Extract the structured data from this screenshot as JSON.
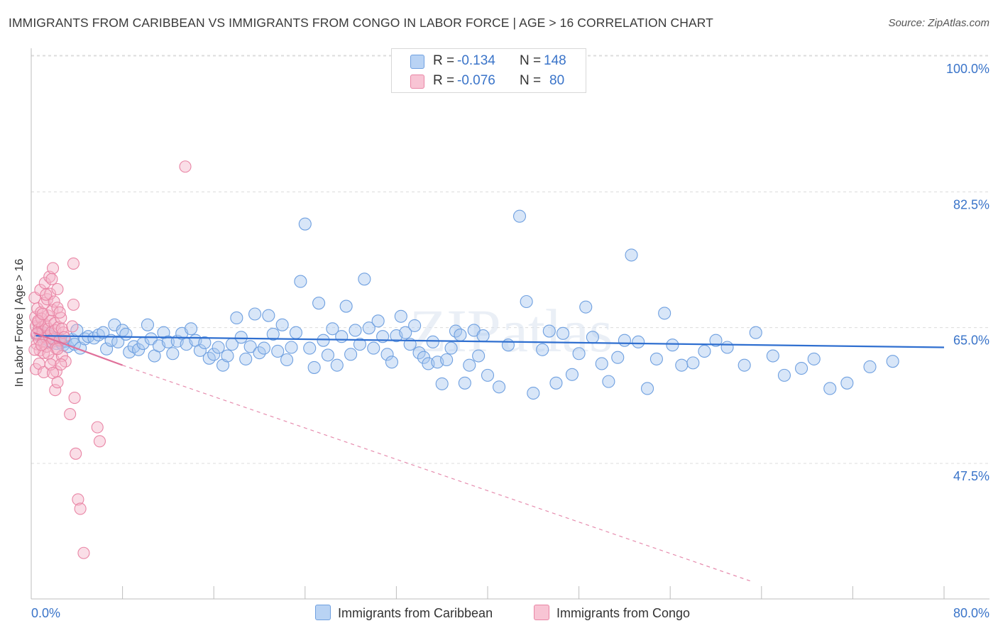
{
  "title": "IMMIGRANTS FROM CARIBBEAN VS IMMIGRANTS FROM CONGO IN LABOR FORCE | AGE > 16 CORRELATION CHART",
  "source": "Source: ZipAtlas.com",
  "watermark": "ZIPatlas",
  "colors": {
    "blue": "#6fa0e0",
    "blue_fill": "#a9c8f0",
    "blue_line": "#2f6fd0",
    "pink": "#e985a5",
    "pink_fill": "#f5b6c9",
    "pink_line": "#e0709a",
    "tick_text": "#3a74c9"
  },
  "legend": {
    "rows": [
      {
        "r_label": "R =",
        "r_value": "-0.134",
        "n_label": "N =",
        "n_value": "148"
      },
      {
        "r_label": "R =",
        "r_value": "-0.076",
        "n_label": "N =",
        "n_value": "80"
      }
    ]
  },
  "bottom_legend": {
    "caribbean": "Immigrants from Caribbean",
    "congo": "Immigrants from Congo"
  },
  "chart_data": {
    "type": "scatter",
    "title": "IMMIGRANTS FROM CARIBBEAN VS IMMIGRANTS FROM CONGO IN LABOR FORCE | AGE > 16 CORRELATION CHART",
    "xlabel": "",
    "ylabel": "In Labor Force | Age > 16",
    "xlim": [
      0,
      80
    ],
    "ylim": [
      34,
      103
    ],
    "x_tick_labels": [
      "0.0%",
      "80.0%"
    ],
    "y_ticks": [
      100.0,
      82.5,
      65.0,
      47.5
    ],
    "y_tick_labels": [
      "100.0%",
      "82.5%",
      "65.0%",
      "47.5%"
    ],
    "series": [
      {
        "name": "Immigrants from Caribbean",
        "r": -0.134,
        "n": 148,
        "trend": {
          "x": [
            0.4,
            80
          ],
          "y": [
            65.6,
            64.1
          ]
        },
        "points": [
          [
            0.5,
            65.8
          ],
          [
            0.8,
            65.5
          ],
          [
            1.0,
            66.0
          ],
          [
            1.2,
            65.2
          ],
          [
            1.4,
            65.9
          ],
          [
            1.6,
            64.9
          ],
          [
            1.8,
            65.4
          ],
          [
            2.0,
            65.0
          ],
          [
            2.2,
            64.6
          ],
          [
            2.4,
            65.3
          ],
          [
            2.6,
            64.7
          ],
          [
            2.8,
            64.4
          ],
          [
            3.0,
            64.9
          ],
          [
            3.2,
            64.2
          ],
          [
            3.6,
            65.1
          ],
          [
            3.8,
            64.5
          ],
          [
            4.0,
            66.3
          ],
          [
            4.3,
            64.0
          ],
          [
            4.7,
            65.2
          ],
          [
            5.0,
            65.5
          ],
          [
            5.5,
            65.3
          ],
          [
            5.9,
            65.7
          ],
          [
            6.3,
            66.0
          ],
          [
            6.6,
            63.9
          ],
          [
            7.0,
            65.0
          ],
          [
            7.3,
            67.0
          ],
          [
            7.6,
            64.8
          ],
          [
            8.0,
            66.3
          ],
          [
            8.3,
            65.8
          ],
          [
            8.6,
            63.5
          ],
          [
            9.0,
            64.2
          ],
          [
            9.4,
            63.8
          ],
          [
            9.8,
            64.6
          ],
          [
            10.2,
            67.0
          ],
          [
            10.5,
            65.2
          ],
          [
            10.8,
            63.0
          ],
          [
            11.2,
            64.3
          ],
          [
            11.6,
            66.0
          ],
          [
            12.0,
            64.8
          ],
          [
            12.4,
            63.3
          ],
          [
            12.8,
            64.9
          ],
          [
            13.2,
            65.9
          ],
          [
            13.6,
            64.5
          ],
          [
            14.0,
            66.5
          ],
          [
            14.4,
            65.0
          ],
          [
            14.8,
            63.7
          ],
          [
            15.2,
            64.7
          ],
          [
            15.6,
            62.7
          ],
          [
            16.0,
            63.2
          ],
          [
            16.4,
            64.1
          ],
          [
            16.8,
            61.8
          ],
          [
            17.2,
            63.0
          ],
          [
            17.6,
            64.5
          ],
          [
            18.0,
            67.9
          ],
          [
            18.4,
            65.4
          ],
          [
            18.8,
            62.6
          ],
          [
            19.2,
            64.2
          ],
          [
            19.6,
            68.4
          ],
          [
            20.0,
            63.4
          ],
          [
            20.4,
            64.0
          ],
          [
            20.8,
            68.2
          ],
          [
            21.2,
            65.8
          ],
          [
            21.6,
            63.6
          ],
          [
            22.0,
            67.0
          ],
          [
            22.4,
            62.5
          ],
          [
            22.8,
            64.1
          ],
          [
            23.2,
            66.0
          ],
          [
            23.6,
            72.6
          ],
          [
            24.0,
            80.0
          ],
          [
            24.4,
            64.0
          ],
          [
            24.8,
            61.5
          ],
          [
            25.2,
            69.8
          ],
          [
            25.6,
            65.0
          ],
          [
            26.0,
            63.1
          ],
          [
            26.4,
            66.5
          ],
          [
            26.8,
            61.8
          ],
          [
            27.2,
            65.5
          ],
          [
            27.6,
            69.4
          ],
          [
            28.0,
            63.2
          ],
          [
            28.4,
            66.3
          ],
          [
            28.8,
            64.5
          ],
          [
            29.2,
            72.9
          ],
          [
            29.6,
            66.6
          ],
          [
            30.0,
            64.0
          ],
          [
            30.4,
            67.5
          ],
          [
            30.8,
            65.5
          ],
          [
            31.2,
            63.2
          ],
          [
            31.6,
            62.2
          ],
          [
            32.0,
            65.6
          ],
          [
            32.4,
            68.1
          ],
          [
            32.8,
            66.0
          ],
          [
            33.2,
            64.5
          ],
          [
            33.6,
            66.9
          ],
          [
            34.0,
            63.4
          ],
          [
            34.4,
            62.8
          ],
          [
            34.8,
            62.0
          ],
          [
            35.2,
            64.8
          ],
          [
            35.6,
            62.2
          ],
          [
            36.0,
            59.4
          ],
          [
            36.4,
            62.5
          ],
          [
            36.8,
            64.0
          ],
          [
            37.2,
            66.2
          ],
          [
            37.6,
            65.7
          ],
          [
            38.0,
            59.5
          ],
          [
            38.4,
            61.8
          ],
          [
            38.8,
            66.3
          ],
          [
            39.2,
            63.0
          ],
          [
            39.6,
            65.6
          ],
          [
            40.0,
            60.5
          ],
          [
            41.0,
            59.0
          ],
          [
            41.8,
            64.4
          ],
          [
            42.8,
            81.0
          ],
          [
            43.4,
            70.0
          ],
          [
            44.0,
            58.2
          ],
          [
            44.8,
            63.8
          ],
          [
            45.4,
            66.2
          ],
          [
            46.0,
            59.5
          ],
          [
            46.6,
            65.9
          ],
          [
            47.4,
            60.6
          ],
          [
            48.0,
            63.3
          ],
          [
            48.6,
            69.3
          ],
          [
            49.2,
            65.4
          ],
          [
            50.0,
            62.0
          ],
          [
            50.6,
            59.7
          ],
          [
            51.4,
            62.8
          ],
          [
            52.0,
            65.0
          ],
          [
            52.6,
            76.0
          ],
          [
            53.2,
            64.8
          ],
          [
            54.0,
            58.8
          ],
          [
            54.8,
            62.6
          ],
          [
            55.5,
            68.5
          ],
          [
            56.2,
            64.4
          ],
          [
            57.0,
            61.8
          ],
          [
            58.0,
            62.1
          ],
          [
            59.0,
            63.6
          ],
          [
            60.0,
            65.0
          ],
          [
            61.0,
            64.1
          ],
          [
            62.5,
            61.8
          ],
          [
            63.5,
            66.0
          ],
          [
            65.0,
            63.0
          ],
          [
            66.0,
            60.5
          ],
          [
            67.5,
            61.4
          ],
          [
            68.6,
            62.6
          ],
          [
            70.0,
            58.8
          ],
          [
            71.5,
            59.5
          ],
          [
            73.5,
            61.6
          ],
          [
            75.5,
            62.3
          ]
        ]
      },
      {
        "name": "Immigrants from Congo",
        "r": -0.076,
        "n": 80,
        "trend": {
          "x": [
            0.2,
            8.0
          ],
          "y": [
            66.0,
            61.8
          ]
        },
        "trend_extended": {
          "x": [
            8.0,
            63.0
          ],
          "y": [
            61.8,
            34.0
          ]
        },
        "points": [
          [
            0.3,
            70.5
          ],
          [
            0.35,
            68.0
          ],
          [
            0.4,
            66.8
          ],
          [
            0.45,
            65.7
          ],
          [
            0.5,
            64.5
          ],
          [
            0.55,
            69.1
          ],
          [
            0.6,
            67.3
          ],
          [
            0.65,
            66.4
          ],
          [
            0.7,
            65.1
          ],
          [
            0.75,
            63.7
          ],
          [
            0.8,
            71.5
          ],
          [
            0.85,
            68.6
          ],
          [
            0.9,
            67.8
          ],
          [
            0.95,
            66.7
          ],
          [
            1.0,
            66.1
          ],
          [
            1.05,
            64.9
          ],
          [
            1.1,
            63.4
          ],
          [
            1.15,
            69.8
          ],
          [
            1.2,
            72.4
          ],
          [
            1.25,
            67.0
          ],
          [
            1.3,
            65.4
          ],
          [
            1.35,
            64.2
          ],
          [
            1.4,
            70.3
          ],
          [
            1.45,
            68.2
          ],
          [
            1.5,
            66.5
          ],
          [
            1.55,
            65.6
          ],
          [
            1.6,
            73.2
          ],
          [
            1.65,
            71.0
          ],
          [
            1.7,
            67.5
          ],
          [
            1.75,
            66.0
          ],
          [
            1.8,
            64.8
          ],
          [
            1.85,
            68.9
          ],
          [
            1.9,
            65.2
          ],
          [
            1.95,
            62.5
          ],
          [
            2.0,
            70.0
          ],
          [
            2.05,
            67.2
          ],
          [
            2.1,
            66.3
          ],
          [
            2.15,
            64.0
          ],
          [
            2.2,
            61.0
          ],
          [
            2.3,
            69.2
          ],
          [
            2.4,
            66.7
          ],
          [
            2.5,
            65.0
          ],
          [
            2.6,
            67.9
          ],
          [
            2.7,
            63.0
          ],
          [
            2.8,
            66.0
          ],
          [
            0.3,
            63.8
          ],
          [
            0.4,
            61.3
          ],
          [
            0.5,
            65.9
          ],
          [
            0.6,
            67.5
          ],
          [
            0.7,
            62.0
          ],
          [
            0.9,
            64.4
          ],
          [
            1.0,
            68.4
          ],
          [
            1.1,
            60.9
          ],
          [
            1.3,
            70.9
          ],
          [
            1.5,
            63.3
          ],
          [
            1.7,
            61.9
          ],
          [
            1.9,
            60.8
          ],
          [
            2.1,
            58.6
          ],
          [
            2.3,
            59.6
          ],
          [
            2.5,
            68.6
          ],
          [
            2.7,
            66.5
          ],
          [
            2.9,
            65.4
          ],
          [
            3.0,
            62.3
          ],
          [
            1.9,
            74.3
          ],
          [
            1.8,
            72.9
          ],
          [
            2.3,
            71.6
          ],
          [
            2.3,
            63.9
          ],
          [
            2.6,
            61.9
          ],
          [
            3.4,
            55.5
          ],
          [
            3.6,
            66.8
          ],
          [
            3.7,
            69.6
          ],
          [
            3.7,
            74.9
          ],
          [
            3.8,
            57.6
          ],
          [
            3.9,
            50.4
          ],
          [
            4.1,
            44.5
          ],
          [
            4.3,
            43.3
          ],
          [
            4.6,
            37.6
          ],
          [
            5.8,
            53.8
          ],
          [
            6.0,
            52.0
          ],
          [
            13.5,
            87.4
          ]
        ]
      }
    ]
  }
}
